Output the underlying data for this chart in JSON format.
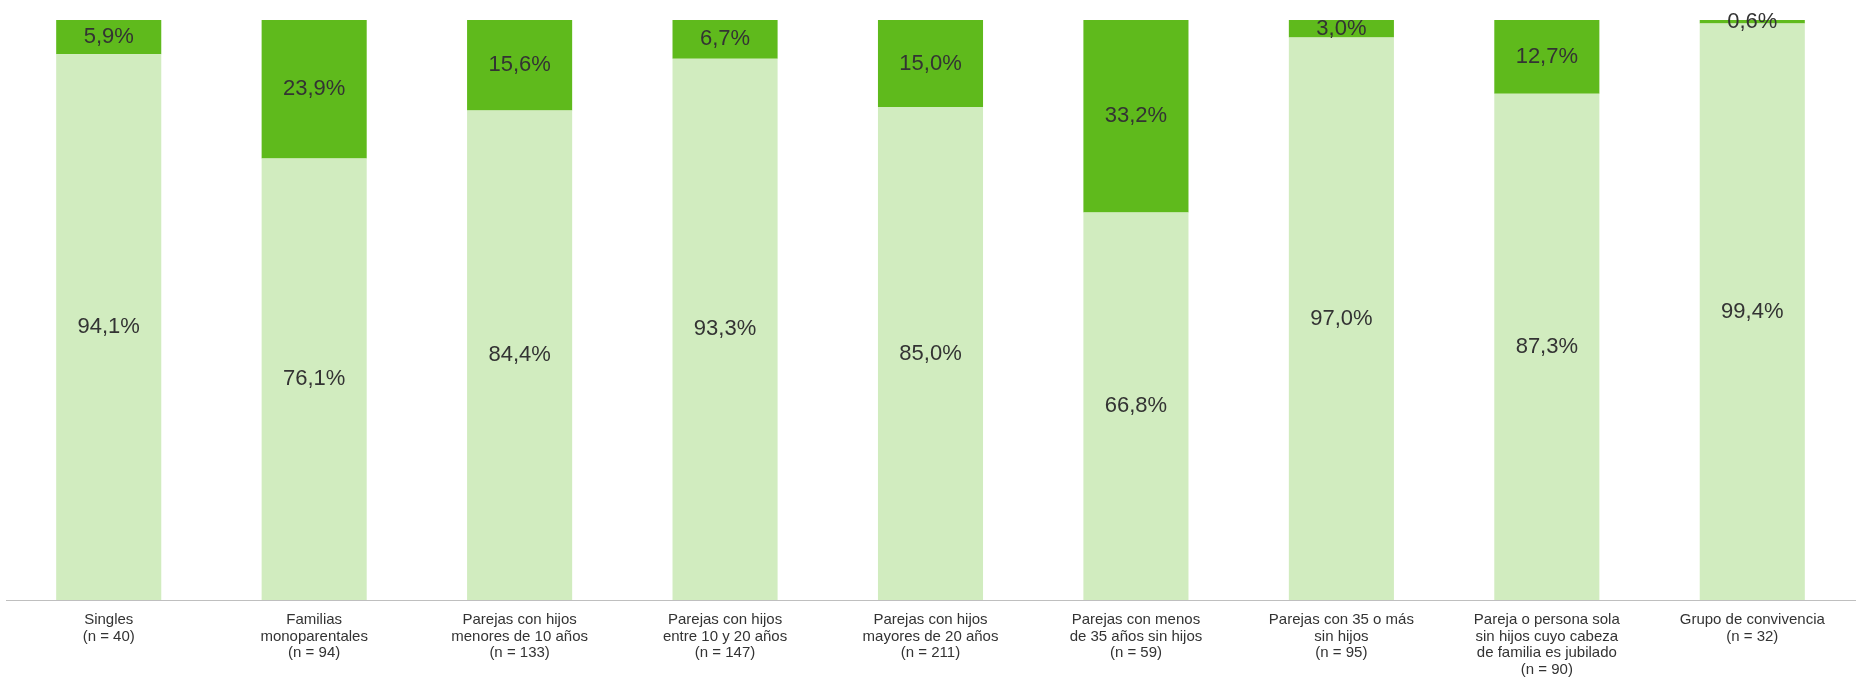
{
  "chart_data": {
    "type": "bar",
    "stacked": true,
    "categories": [
      "Singles\n(n = 40)",
      "Familias\nmonoparentales\n(n = 94)",
      "Parejas con hijos\nmenores de 10 años\n(n = 133)",
      "Parejas con hijos\nentre 10 y 20 años\n(n = 147)",
      "Parejas con hijos\nmayores de 20 años\n(n = 211)",
      "Parejas con menos\nde 35 años sin hijos\n(n = 59)",
      "Parejas con 35 o más\nsin hijos\n(n = 95)",
      "Pareja o persona sola\nsin hijos cuyo cabeza\nde familia es jubilado\n(n = 90)",
      "Grupo de convivencia\n(n = 32)"
    ],
    "series": [
      {
        "color": "#d1ecbf",
        "values": [
          94.1,
          76.1,
          84.4,
          93.3,
          85.0,
          66.8,
          97.0,
          87.3,
          99.4
        ],
        "value_labels": [
          "94,1%",
          "76,1%",
          "84,4%",
          "93,3%",
          "85,0%",
          "66,8%",
          "97,0%",
          "87,3%",
          "99,4%"
        ]
      },
      {
        "color": "#5fba1c",
        "values": [
          5.9,
          23.9,
          15.6,
          6.7,
          15.0,
          33.2,
          3.0,
          12.7,
          0.6
        ],
        "value_labels": [
          "5,9%",
          "23,9%",
          "15,6%",
          "6,7%",
          "15,0%",
          "33,2%",
          "3,0%",
          "12,7%",
          "0,6%"
        ]
      }
    ],
    "ylim": [
      0,
      100
    ],
    "tick_labels": "x",
    "grid": false,
    "legend": false
  }
}
